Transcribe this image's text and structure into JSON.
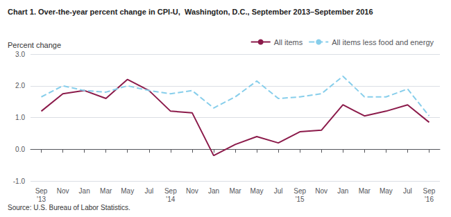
{
  "chart_data": {
    "type": "line",
    "title": "Chart 1. Over-the-year percent change in CPI-U,  Washington, D.C., September 2013–September 2016",
    "ylabel": "Percent change",
    "source": "Source: U.S. Bureau of Labor Statistics.",
    "categories": [
      "Sep\n'13",
      "Nov",
      "Jan",
      "Mar",
      "May",
      "Jul",
      "Sep\n'14",
      "Nov",
      "Jan",
      "Mar",
      "May",
      "Jul",
      "Sep\n'15",
      "Nov",
      "Jan",
      "Mar",
      "May",
      "Jul",
      "Sep\n'16"
    ],
    "series": [
      {
        "name": "All items",
        "color": "#8B1A4A",
        "line_style": "solid",
        "values": [
          1.2,
          1.75,
          1.85,
          1.6,
          2.2,
          1.85,
          1.2,
          1.15,
          -0.2,
          0.15,
          0.4,
          0.2,
          0.55,
          0.6,
          1.4,
          1.05,
          1.2,
          1.4,
          0.85
        ]
      },
      {
        "name": "All items less food and energy",
        "color": "#87CEEB",
        "line_style": "dashed",
        "values": [
          1.65,
          2.0,
          1.85,
          1.8,
          2.0,
          1.85,
          1.75,
          1.85,
          1.3,
          1.65,
          2.15,
          1.6,
          1.65,
          1.75,
          2.3,
          1.65,
          1.65,
          1.9,
          1.05
        ]
      }
    ],
    "ylim": [
      -1.0,
      3.0
    ],
    "yticks": [
      {
        "value": -1.0,
        "label": "-1.0"
      },
      {
        "value": 0.0,
        "label": "0.0"
      },
      {
        "value": 1.0,
        "label": "1.0"
      },
      {
        "value": 2.0,
        "label": "2.0"
      },
      {
        "value": 3.0,
        "label": "3.0"
      }
    ],
    "grid": true,
    "legend": "upper right"
  }
}
